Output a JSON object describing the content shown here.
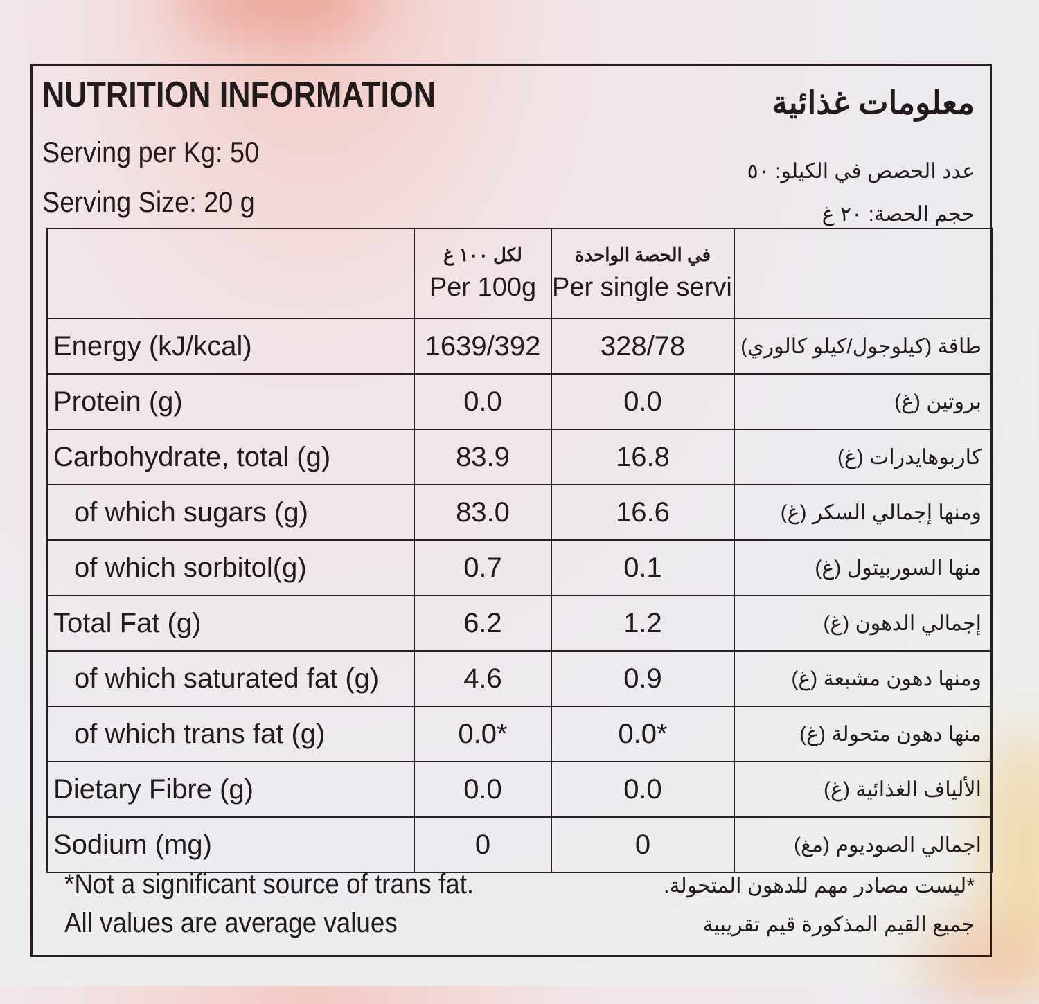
{
  "title": {
    "en": "NUTRITION INFORMATION",
    "ar": "معلومات غذائية"
  },
  "serving": {
    "per_kg_en": "Serving per Kg: 50",
    "per_kg_ar": "عدد الحصص في الكيلو: ٥٠",
    "size_en": "Serving Size: 20 g",
    "size_ar": "حجم الحصة: ٢٠ غ"
  },
  "table": {
    "headers": {
      "per100_ar": "لكل ١٠٠ غ",
      "per100_en": "Per 100g",
      "serving_ar": "في الحصة الواحدة",
      "serving_en": "Per single serving"
    },
    "rows": [
      {
        "en": "Energy (kJ/kcal)",
        "per100": "1639/392",
        "serving": "328/78",
        "ar": "طاقة (كيلوجول/كيلو كالوري)"
      },
      {
        "en": "Protein (g)",
        "per100": "0.0",
        "serving": "0.0",
        "ar": "بروتين (غ)"
      },
      {
        "en": "Carbohydrate, total (g)",
        "per100": "83.9",
        "serving": "16.8",
        "ar": "كاربوهايدرات (غ)"
      },
      {
        "en": "of which sugars (g)",
        "per100": "83.0",
        "serving": "16.6",
        "ar": "ومنها إجمالي السكر (غ)"
      },
      {
        "en": "of which sorbitol(g)",
        "per100": "0.7",
        "serving": "0.1",
        "ar": "منها السوربيتول (غ)"
      },
      {
        "en": "Total Fat (g)",
        "per100": "6.2",
        "serving": "1.2",
        "ar": "إجمالي الدهون (غ)"
      },
      {
        "en": "of which saturated fat (g)",
        "per100": "4.6",
        "serving": "0.9",
        "ar": "ومنها دهون مشبعة (غ)"
      },
      {
        "en": "of which trans fat (g)",
        "per100": "0.0*",
        "serving": "0.0*",
        "ar": "منها دهون متحولة (غ)"
      },
      {
        "en": "Dietary Fibre (g)",
        "per100": "0.0",
        "serving": "0.0",
        "ar": "الألياف الغذائية (غ)"
      },
      {
        "en": "Sodium (mg)",
        "per100": "0",
        "serving": "0",
        "ar": "اجمالي الصوديوم (مغ)"
      }
    ]
  },
  "footer": {
    "note_en": "*Not a significant source of trans fat.",
    "note_ar": "*ليست مصادر مهم للدهون المتحولة.",
    "avg_en": "All values are average values",
    "avg_ar": "جميع القيم المذكورة قيم تقريبية"
  },
  "colors": {
    "ink": "#231a1c",
    "rule": "#2b1e20"
  }
}
